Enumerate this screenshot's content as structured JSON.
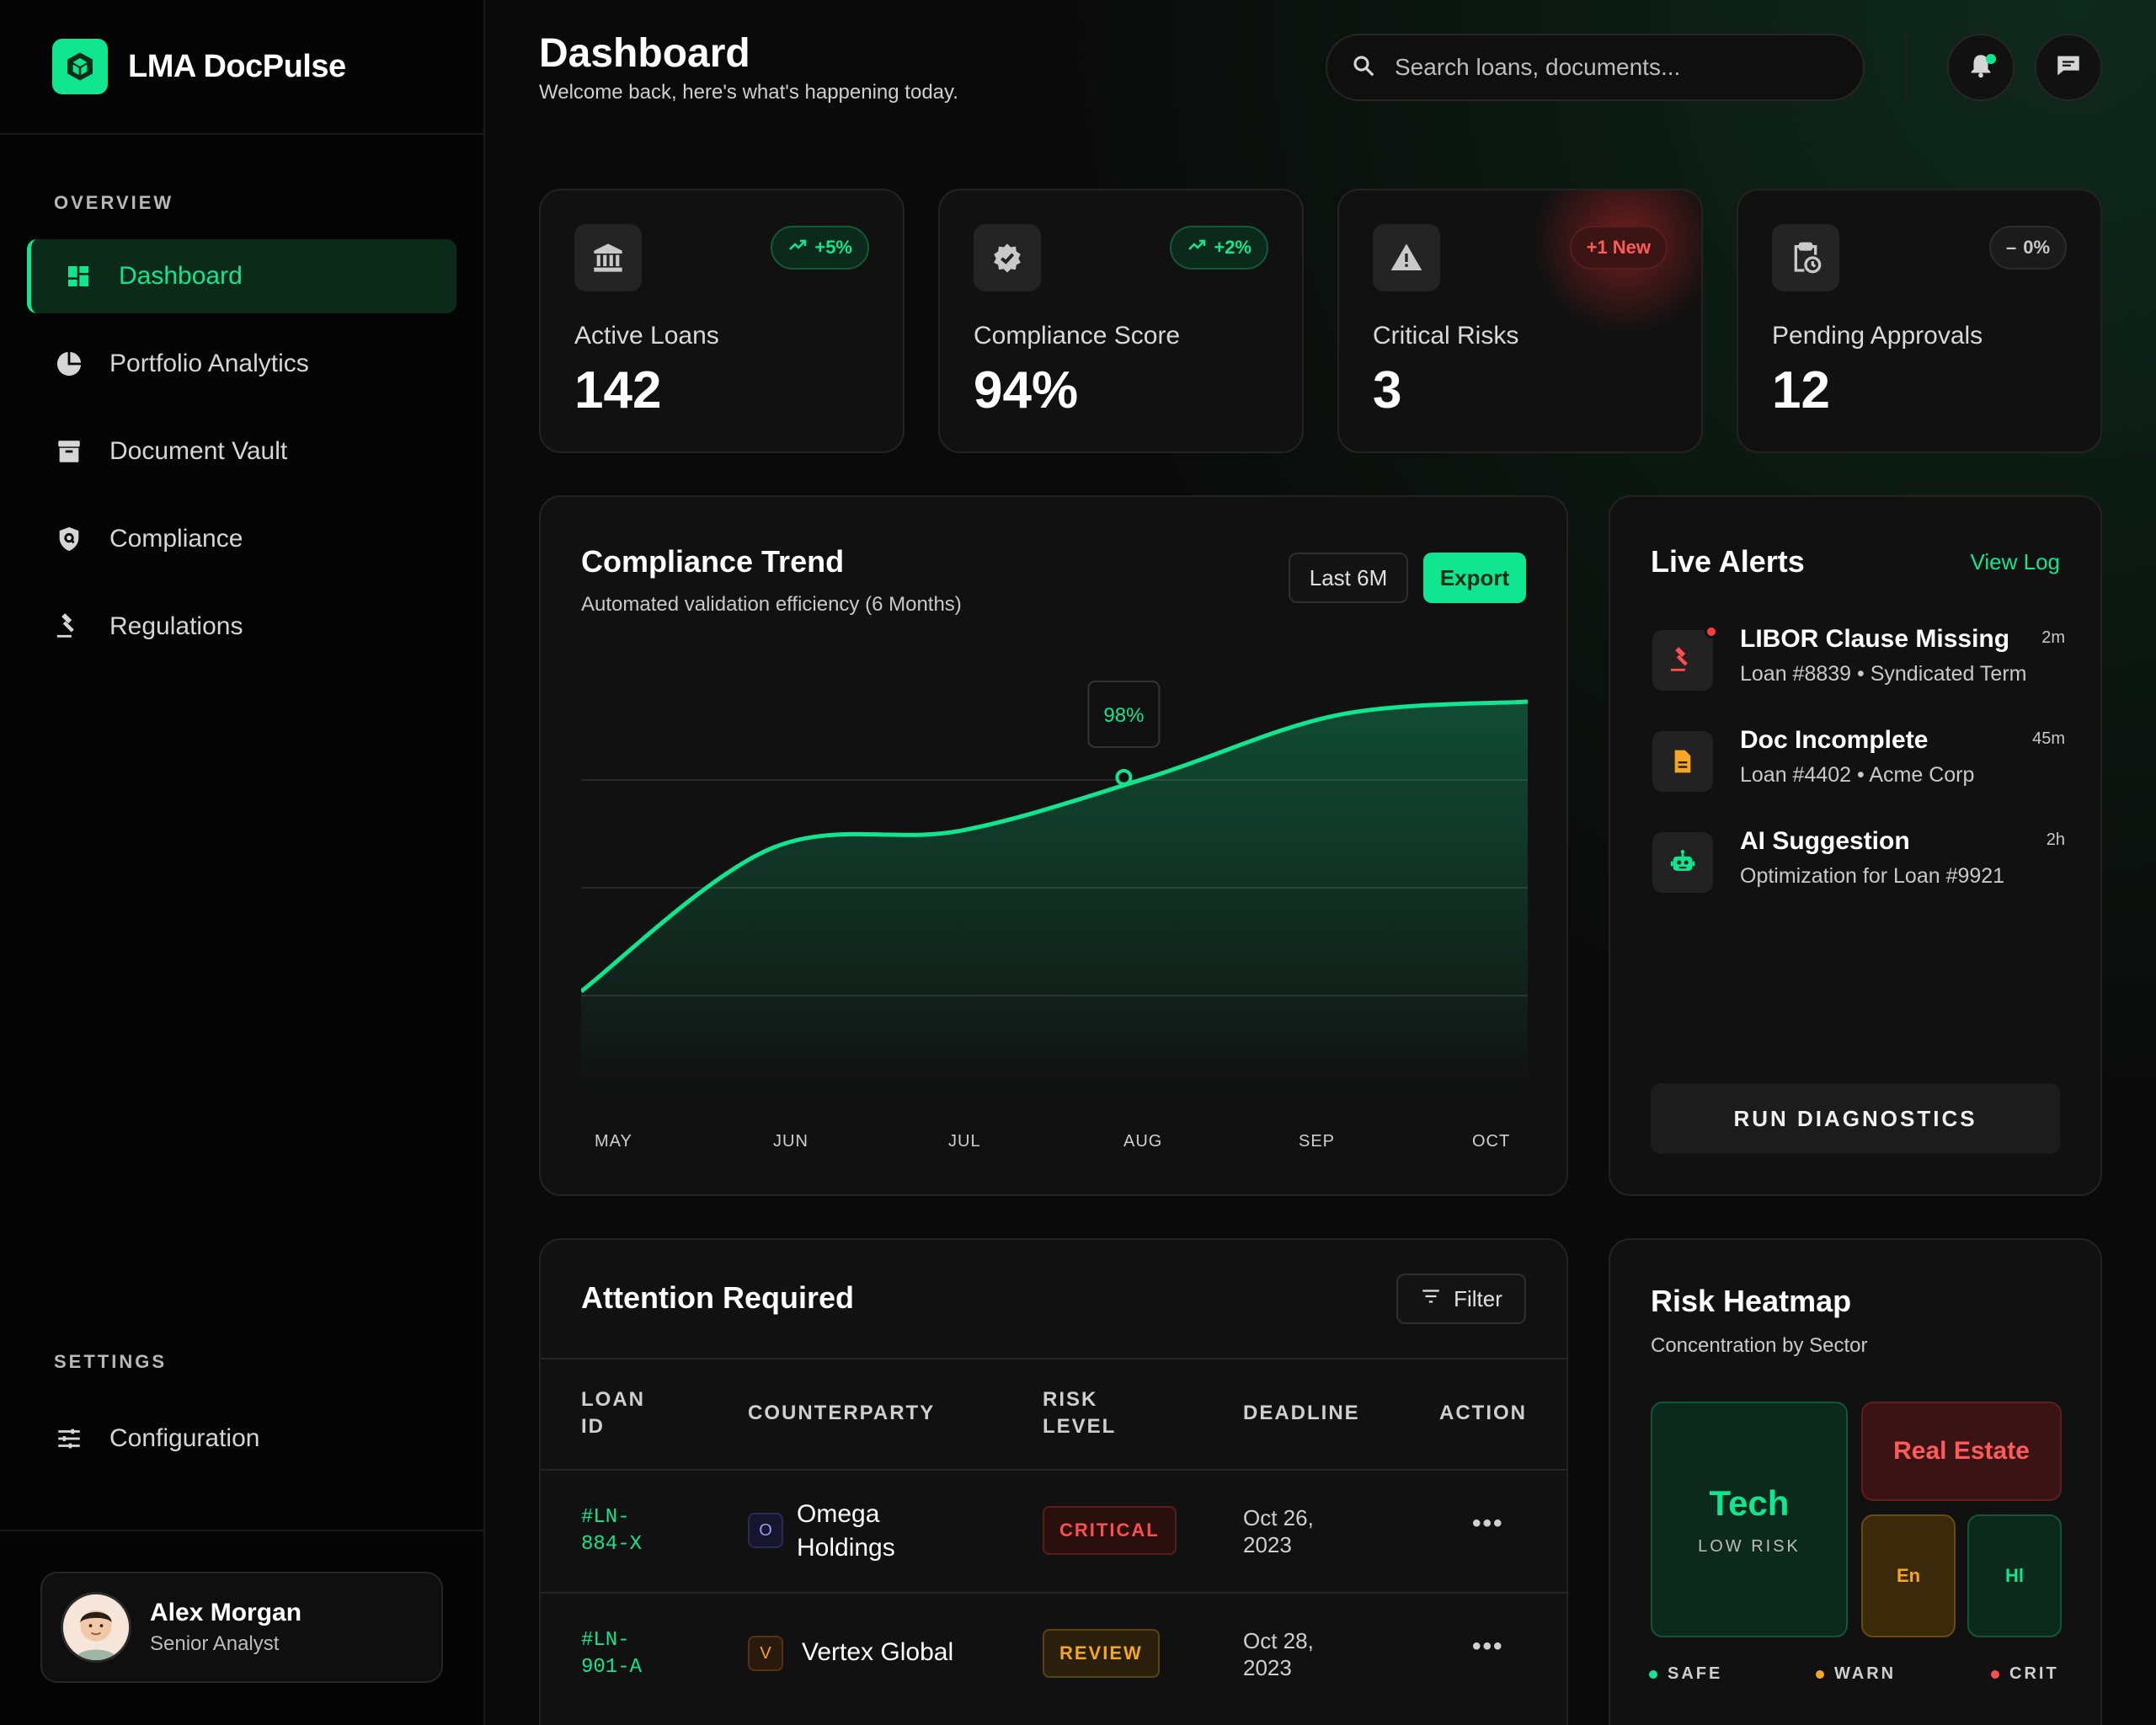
{
  "brand": {
    "name": "LMA DocPulse"
  },
  "sidebar": {
    "overview_label": "OVERVIEW",
    "items": [
      {
        "label": "Dashboard",
        "icon": "dashboard-icon",
        "active": true
      },
      {
        "label": "Portfolio Analytics",
        "icon": "pie-chart-icon"
      },
      {
        "label": "Document Vault",
        "icon": "archive-icon"
      },
      {
        "label": "Compliance",
        "icon": "shield-icon"
      },
      {
        "label": "Regulations",
        "icon": "gavel-icon"
      }
    ],
    "settings_label": "SETTINGS",
    "settings_items": [
      {
        "label": "Configuration",
        "icon": "sliders-icon"
      }
    ]
  },
  "user": {
    "name": "Alex Morgan",
    "role": "Senior Analyst"
  },
  "header": {
    "title": "Dashboard",
    "subtitle": "Welcome back, here's what's happening today.",
    "search_placeholder": "Search loans, documents..."
  },
  "stats": [
    {
      "label": "Active Loans",
      "value": "142",
      "badge": "+5%",
      "badge_type": "green",
      "icon": "bank-icon"
    },
    {
      "label": "Compliance Score",
      "value": "94%",
      "badge": "+2%",
      "badge_type": "green",
      "icon": "verified-badge-icon"
    },
    {
      "label": "Critical Risks",
      "value": "3",
      "badge": "+1 New",
      "badge_type": "red",
      "icon": "warning-icon"
    },
    {
      "label": "Pending Approvals",
      "value": "12",
      "badge": "0%",
      "badge_type": "gray",
      "icon": "clipboard-clock-icon"
    }
  ],
  "trend": {
    "title": "Compliance Trend",
    "subtitle": "Automated validation efficiency (6 Months)",
    "range_button": "Last 6M",
    "export_button": "Export",
    "tooltip": "98%"
  },
  "chart_data": {
    "type": "area",
    "categories": [
      "MAY",
      "JUN",
      "JUL",
      "AUG",
      "SEP",
      "OCT"
    ],
    "series": [
      {
        "values": [
          50,
          82,
          86,
          98,
          112,
          115
        ]
      }
    ],
    "highlight": {
      "category": "AUG",
      "label": "98%"
    },
    "grid": true
  },
  "alerts": {
    "title": "Live Alerts",
    "view_log": "View Log",
    "items": [
      {
        "title": "LIBOR Clause Missing",
        "desc": "Loan #8839 • Syndicated Term",
        "time": "2m",
        "icon": "gavel-icon",
        "color": "#ff4d4d"
      },
      {
        "title": "Doc Incomplete",
        "desc": "Loan #4402 • Acme Corp",
        "time": "45m",
        "icon": "document-icon",
        "color": "#f5a623"
      },
      {
        "title": "AI Suggestion",
        "desc": "Optimization for Loan #9921",
        "time": "2h",
        "icon": "robot-icon",
        "color": "#10e58f"
      }
    ],
    "run_button": "RUN DIAGNOSTICS"
  },
  "table": {
    "title": "Attention Required",
    "filter_button": "Filter",
    "headers": [
      "LOAN ID",
      "COUNTERPARTY",
      "RISK LEVEL",
      "DEADLINE",
      "ACTION"
    ],
    "rows": [
      {
        "id": "#LN-884-X",
        "initial": "O",
        "name": "Omega Holdings",
        "risk": "CRITICAL",
        "deadline": "Oct 26, 2023"
      },
      {
        "id": "#LN-901-A",
        "initial": "V",
        "name": "Vertex Global",
        "risk": "REVIEW",
        "deadline": "Oct 28, 2023"
      }
    ]
  },
  "heatmap": {
    "title": "Risk Heatmap",
    "subtitle": "Concentration by Sector",
    "tiles": [
      {
        "label": "Tech",
        "sublabel": "LOW RISK"
      },
      {
        "label": "Real Estate"
      },
      {
        "label": "En"
      },
      {
        "label": "Hl"
      }
    ],
    "legend": [
      "SAFE",
      "WARN",
      "CRIT"
    ]
  },
  "colors": {
    "accent": "#10e58f",
    "critical": "#ff4d4d",
    "warn": "#f5a623",
    "background": "#0a0a0a"
  }
}
